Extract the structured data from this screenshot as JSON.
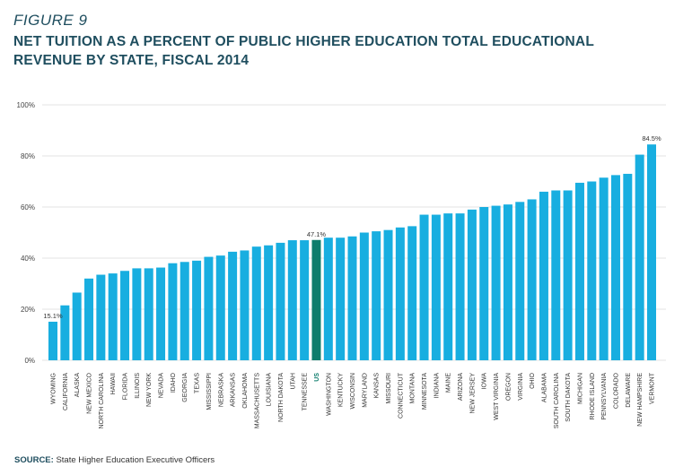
{
  "figure_label": "FIGURE 9",
  "title": "NET TUITION AS A PERCENT OF PUBLIC HIGHER EDUCATION TOTAL EDUCATIONAL REVENUE BY STATE, FISCAL 2014",
  "source_label": "SOURCE:",
  "source_text": "State Higher Education Executive Officers",
  "colors": {
    "bar": "#18aee0",
    "highlight": "#0e7d6c",
    "grid": "#e3e3e3"
  },
  "chart_data": {
    "type": "bar",
    "title": "NET TUITION AS A PERCENT OF PUBLIC HIGHER EDUCATION TOTAL EDUCATIONAL REVENUE BY STATE, FISCAL 2014",
    "xlabel": "",
    "ylabel": "",
    "ylim": [
      0,
      100
    ],
    "yticks": [
      0,
      20,
      40,
      60,
      80,
      100
    ],
    "ytick_labels": [
      "0%",
      "20%",
      "40%",
      "60%",
      "80%",
      "100%"
    ],
    "grid": true,
    "highlight_category": "US",
    "categories": [
      "WYOMING",
      "CALIFORNIA",
      "ALASKA",
      "NEW MEXICO",
      "NORTH CAROLINA",
      "HAWAII",
      "FLORIDA",
      "ILLINOIS",
      "NEW YORK",
      "NEVADA",
      "IDAHO",
      "GEORGIA",
      "TEXAS",
      "MISSISSIPPI",
      "NEBRASKA",
      "ARKANSAS",
      "OKLAHOMA",
      "MASSACHUSETTS",
      "LOUISIANA",
      "NORTH DAKOTA",
      "UTAH",
      "TENNESSEE",
      "US",
      "WASHINGTON",
      "KENTUCKY",
      "WISCONSIN",
      "MARYLAND",
      "KANSAS",
      "MISSOURI",
      "CONNECTICUT",
      "MONTANA",
      "MINNESOTA",
      "INDIANA",
      "MAINE",
      "ARIZONA",
      "NEW JERSEY",
      "IOWA",
      "WEST VIRGINIA",
      "OREGON",
      "VIRGINIA",
      "OHIO",
      "ALABAMA",
      "SOUTH CAROLINA",
      "SOUTH DAKOTA",
      "MICHIGAN",
      "RHODE ISLAND",
      "PENNSYLVANIA",
      "COLORADO",
      "DELAWARE",
      "NEW HAMPSHIRE",
      "VERMONT"
    ],
    "values": [
      15.1,
      21.5,
      26.5,
      32.0,
      33.5,
      34.0,
      35.0,
      36.0,
      36.0,
      36.3,
      38.0,
      38.5,
      39.0,
      40.5,
      41.0,
      42.5,
      43.0,
      44.5,
      45.0,
      46.0,
      47.0,
      47.0,
      47.1,
      48.0,
      48.0,
      48.5,
      50.0,
      50.5,
      51.0,
      52.0,
      52.5,
      57.0,
      57.0,
      57.5,
      57.5,
      59.0,
      60.0,
      60.5,
      61.0,
      62.0,
      63.0,
      66.0,
      66.5,
      66.5,
      69.5,
      70.0,
      71.5,
      72.5,
      73.0,
      80.5,
      84.5
    ],
    "data_labels": [
      {
        "category": "WYOMING",
        "text": "15.1%"
      },
      {
        "category": "US",
        "text": "47.1%"
      },
      {
        "category": "VERMONT",
        "text": "84.5%"
      }
    ]
  }
}
